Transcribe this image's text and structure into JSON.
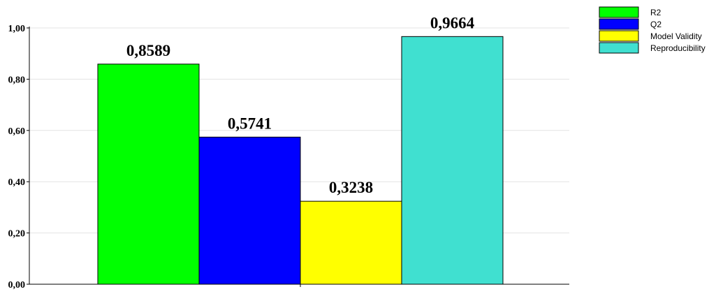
{
  "chart_data": {
    "type": "bar",
    "categories": [
      "R2",
      "Q2",
      "Model Validity",
      "Reproducibility"
    ],
    "values": [
      0.8589,
      0.5741,
      0.3238,
      0.9664
    ],
    "value_labels": [
      "0,8589",
      "0,5741",
      "0,3238",
      "0,9664"
    ],
    "colors": [
      "#00ff00",
      "#0000ff",
      "#ffff00",
      "#40e0d0"
    ],
    "ylim": [
      0,
      1.0
    ],
    "yticks": [
      0,
      0.2,
      0.4,
      0.6,
      0.8,
      1.0
    ],
    "ytick_labels": [
      "0,00",
      "0,20",
      "0,40",
      "0,60",
      "0,80",
      "1,00"
    ],
    "title": "",
    "xlabel": "",
    "ylabel": "",
    "grid": true,
    "legend_position": "top-right",
    "legend": [
      "R2",
      "Q2",
      "Model Validity",
      "Reproducibility"
    ]
  }
}
